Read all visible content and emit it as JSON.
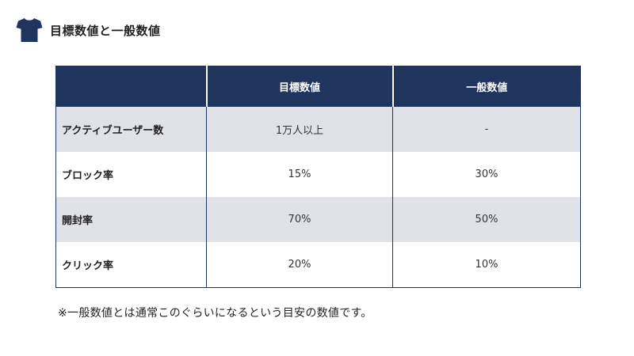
{
  "header": {
    "icon": "t-shirt-icon",
    "title": "目標数値と一般数値"
  },
  "table": {
    "columns": [
      "",
      "目標数値",
      "一般数値"
    ],
    "rows": [
      {
        "label": "アクティブユーザー数",
        "target": "1万人以上",
        "general": "-"
      },
      {
        "label": "ブロック率",
        "target": "15%",
        "general": "30%"
      },
      {
        "label": "開封率",
        "target": "70%",
        "general": "50%"
      },
      {
        "label": "クリック率",
        "target": "20%",
        "general": "10%"
      }
    ]
  },
  "note": "※一般数値とは通常このぐらいになるという目安の数値です。",
  "colors": {
    "header_navy": "#1f355e",
    "row_shade": "#e0e2e8"
  }
}
